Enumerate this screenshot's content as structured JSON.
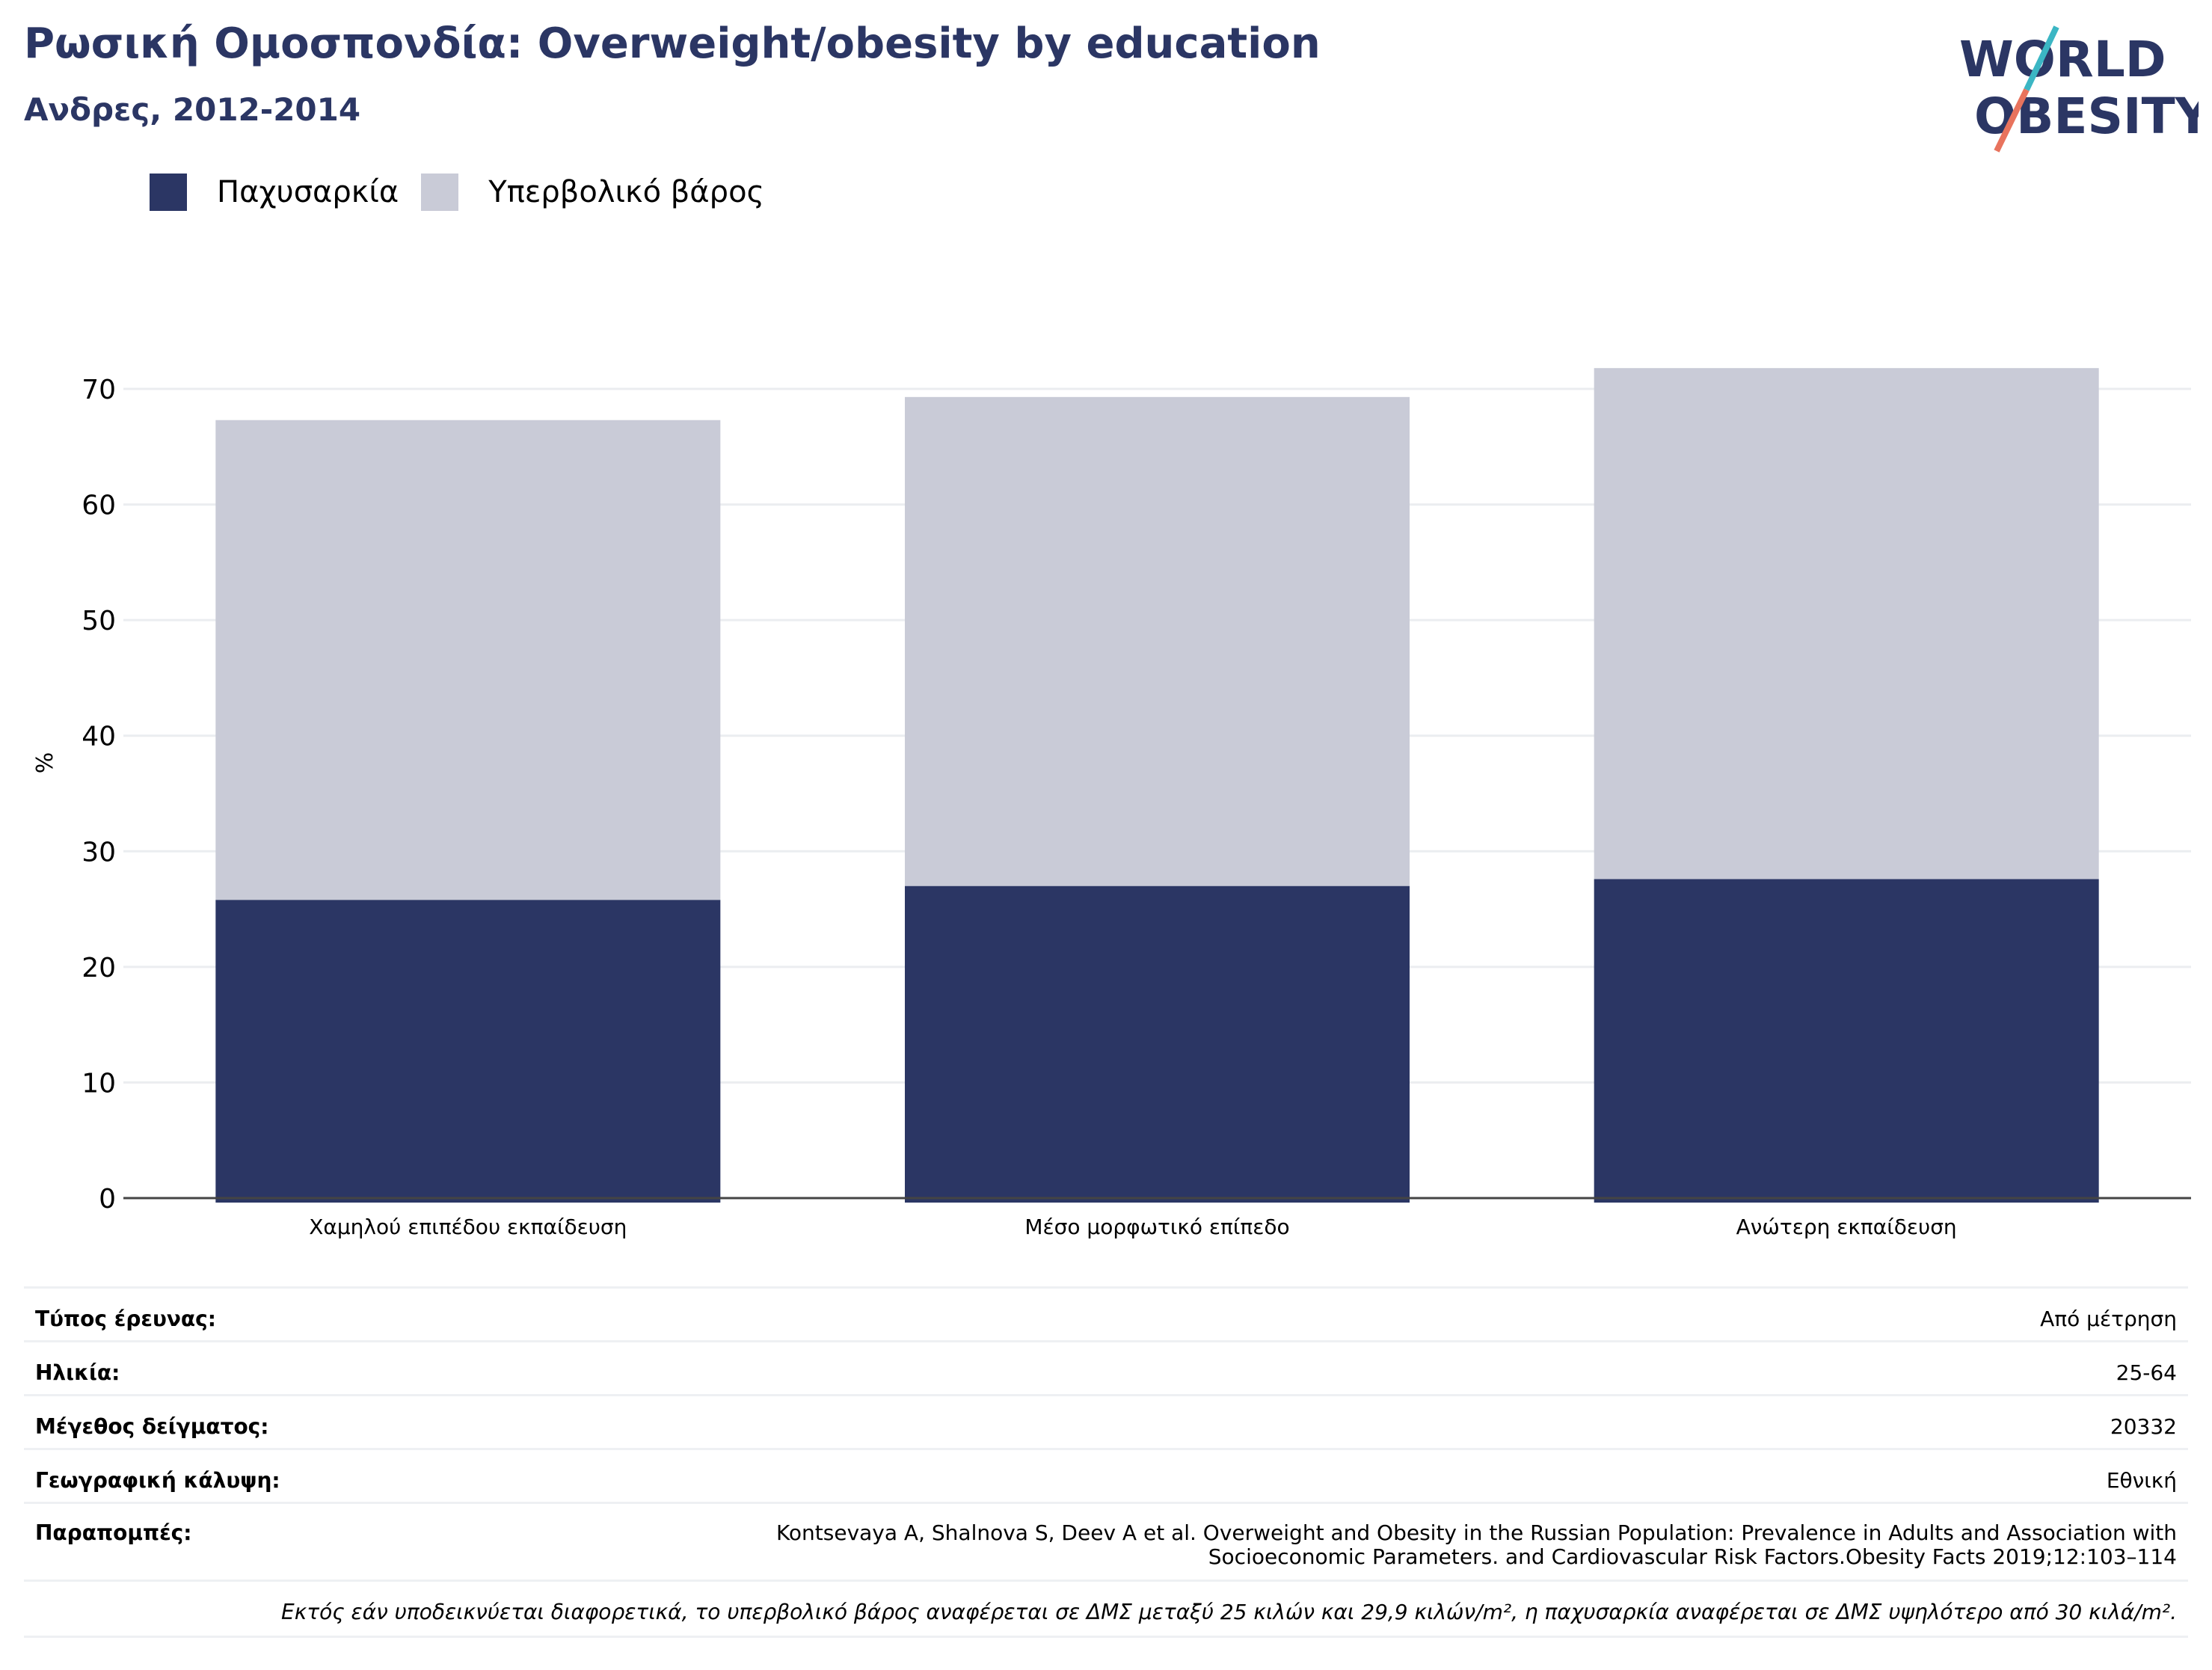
{
  "header": {
    "title": "Ρωσική Ομοσπονδία: Overweight/obesity by education",
    "subtitle": "Ανδρες, 2012-2014"
  },
  "logo": {
    "line1": "WORLD",
    "line2": "OBESITY",
    "text_color": "#2b3664",
    "slash_top": "#3bb6c4",
    "slash_bottom": "#e8735d"
  },
  "colors": {
    "obesity": "#2b3664",
    "overweight": "#c9cbd7",
    "grid": "#ebedf0",
    "axis": "#444444"
  },
  "chart_data": {
    "type": "bar",
    "stacked": true,
    "categories": [
      "Χαμηλού επιπέδου εκπαίδευση",
      "Μέσο μορφωτικό επίπεδο",
      "Ανώτερη εκπαίδευση"
    ],
    "series": [
      {
        "name": "Παχυσαρκία",
        "values": [
          25.8,
          27.0,
          27.6
        ],
        "color": "#2b3664"
      },
      {
        "name": "Υπερβολικό βάρος",
        "values": [
          41.5,
          42.3,
          44.2
        ],
        "color": "#c9cbd7"
      }
    ],
    "ylabel": "%",
    "ylim": [
      0,
      72
    ],
    "yticks": [
      0,
      10,
      20,
      30,
      40,
      50,
      60,
      70
    ],
    "grid": true,
    "legend": "top-left"
  },
  "info": {
    "rows": [
      {
        "label": "Τύπος έρευνας:",
        "value": "Από μέτρηση"
      },
      {
        "label": "Ηλικία:",
        "value": "25-64"
      },
      {
        "label": "Μέγεθος δείγματος:",
        "value": "20332"
      },
      {
        "label": "Γεωγραφική κάλυψη:",
        "value": "Εθνική"
      }
    ],
    "references_label": "Παραπομπές:",
    "references_line1": "Kontsevaya A, Shalnova S, Deev A et al. Overweight and Obesity in the Russian Population: Prevalence in Adults and Association with",
    "references_line2": "Socioeconomic Parameters. and Cardiovascular Risk Factors.Obesity Facts 2019;12:103–114",
    "footnote": "Εκτός εάν υποδεικνύεται διαφορετικά, το υπερβολικό βάρος αναφέρεται σε ΔΜΣ μεταξύ 25 κιλών και 29,9 κιλών/m², η παχυσαρκία αναφέρεται σε ΔΜΣ υψηλότερο από 30 κιλά/m²."
  }
}
